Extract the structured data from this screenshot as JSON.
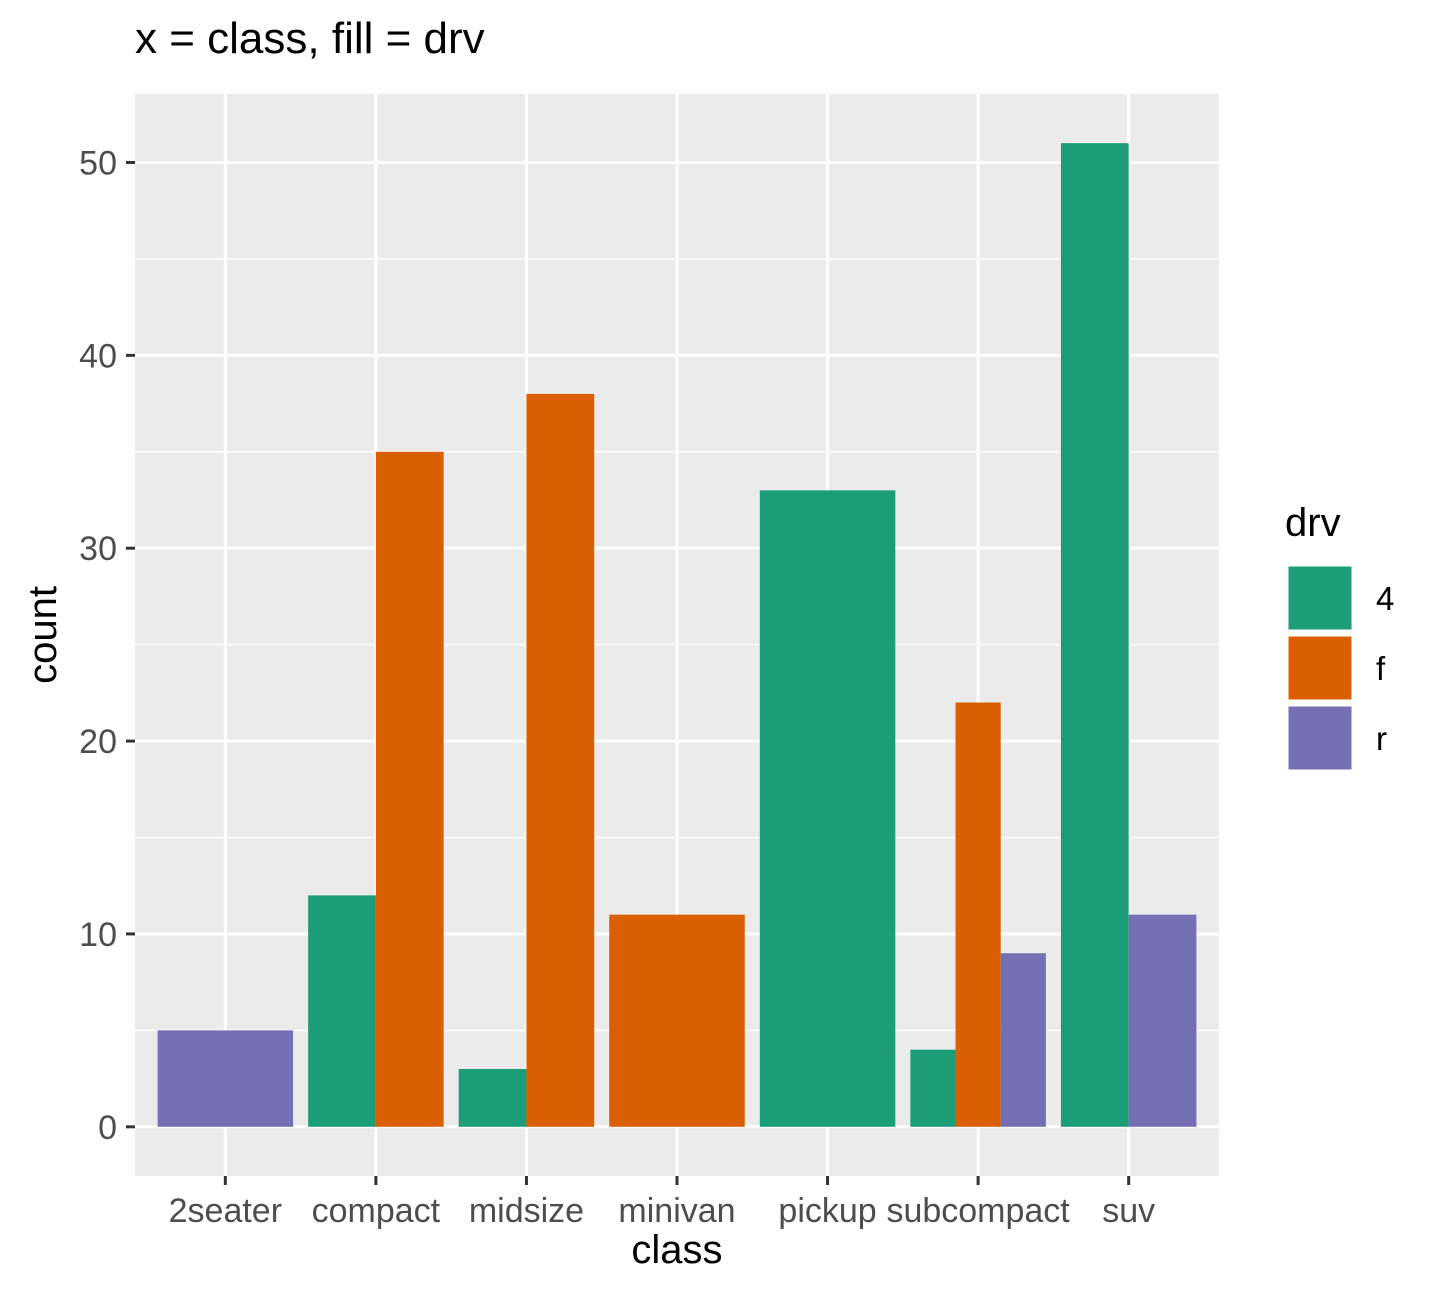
{
  "chart_data": {
    "type": "bar",
    "title": "x = class, fill = drv",
    "xlabel": "class",
    "ylabel": "count",
    "categories": [
      "2seater",
      "compact",
      "midsize",
      "minivan",
      "pickup",
      "subcompact",
      "suv"
    ],
    "series": [
      {
        "name": "4",
        "color": "#1b9e77",
        "values": [
          null,
          12,
          3,
          null,
          33,
          4,
          51
        ]
      },
      {
        "name": "f",
        "color": "#d95f02",
        "values": [
          null,
          35,
          38,
          11,
          null,
          22,
          null
        ]
      },
      {
        "name": "r",
        "color": "#7570b3",
        "values": [
          5,
          null,
          null,
          null,
          null,
          9,
          11
        ]
      }
    ],
    "ylim": [
      -2.55,
      53.55
    ],
    "yticks": [
      0,
      10,
      20,
      30,
      40,
      50
    ],
    "grid": true,
    "legend": {
      "title": "drv",
      "position": "right"
    }
  }
}
